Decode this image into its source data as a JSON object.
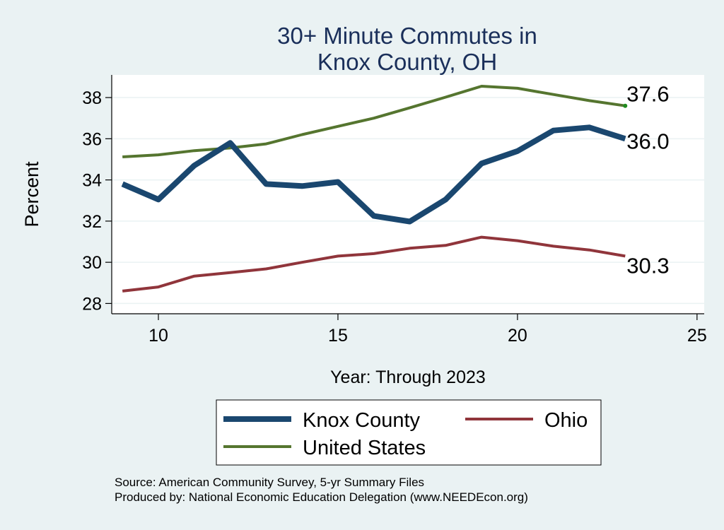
{
  "chart_data": {
    "type": "line",
    "title_lines": [
      "30+ Minute Commutes in",
      "Knox County, OH"
    ],
    "xlabel": "Year: Through 2023",
    "ylabel": "Percent",
    "xlim": [
      8.7,
      25.2
    ],
    "ylim": [
      27.5,
      39.1
    ],
    "xticks": [
      10,
      15,
      20,
      25
    ],
    "yticks": [
      28,
      30,
      32,
      34,
      36,
      38
    ],
    "x": [
      9,
      10,
      11,
      12,
      13,
      14,
      15,
      16,
      17,
      18,
      19,
      20,
      21,
      22,
      23
    ],
    "series": [
      {
        "name": "Knox County",
        "color": "#1a476f",
        "values": [
          33.8,
          33.05,
          34.7,
          35.8,
          33.8,
          33.7,
          33.9,
          32.25,
          31.98,
          33.05,
          34.8,
          35.4,
          36.4,
          36.55,
          36.0
        ],
        "end_label": "36.0"
      },
      {
        "name": "Ohio",
        "color": "#90353b",
        "values": [
          28.6,
          28.8,
          29.33,
          29.5,
          29.68,
          30.0,
          30.3,
          30.42,
          30.68,
          30.82,
          31.22,
          31.05,
          30.78,
          30.6,
          30.3
        ],
        "end_label": "30.3"
      },
      {
        "name": "United States",
        "color": "#55752f",
        "values": [
          35.12,
          35.22,
          35.42,
          35.55,
          35.75,
          36.2,
          36.6,
          37.0,
          37.5,
          38.02,
          38.55,
          38.45,
          38.15,
          37.85,
          37.6
        ],
        "end_label": "37.6"
      }
    ],
    "legend_position": "bottom",
    "grid": true
  },
  "source_note": {
    "line1": "Source: American Community Survey, 5-yr Summary Files",
    "line2": "Produced by: National Economic Education Delegation (www.NEEDEcon.org)"
  },
  "colors": {
    "background": "#eaf2f3",
    "plot_background": "#ffffff",
    "grid": "#eaf2f3",
    "title": "#1a2f5a"
  }
}
